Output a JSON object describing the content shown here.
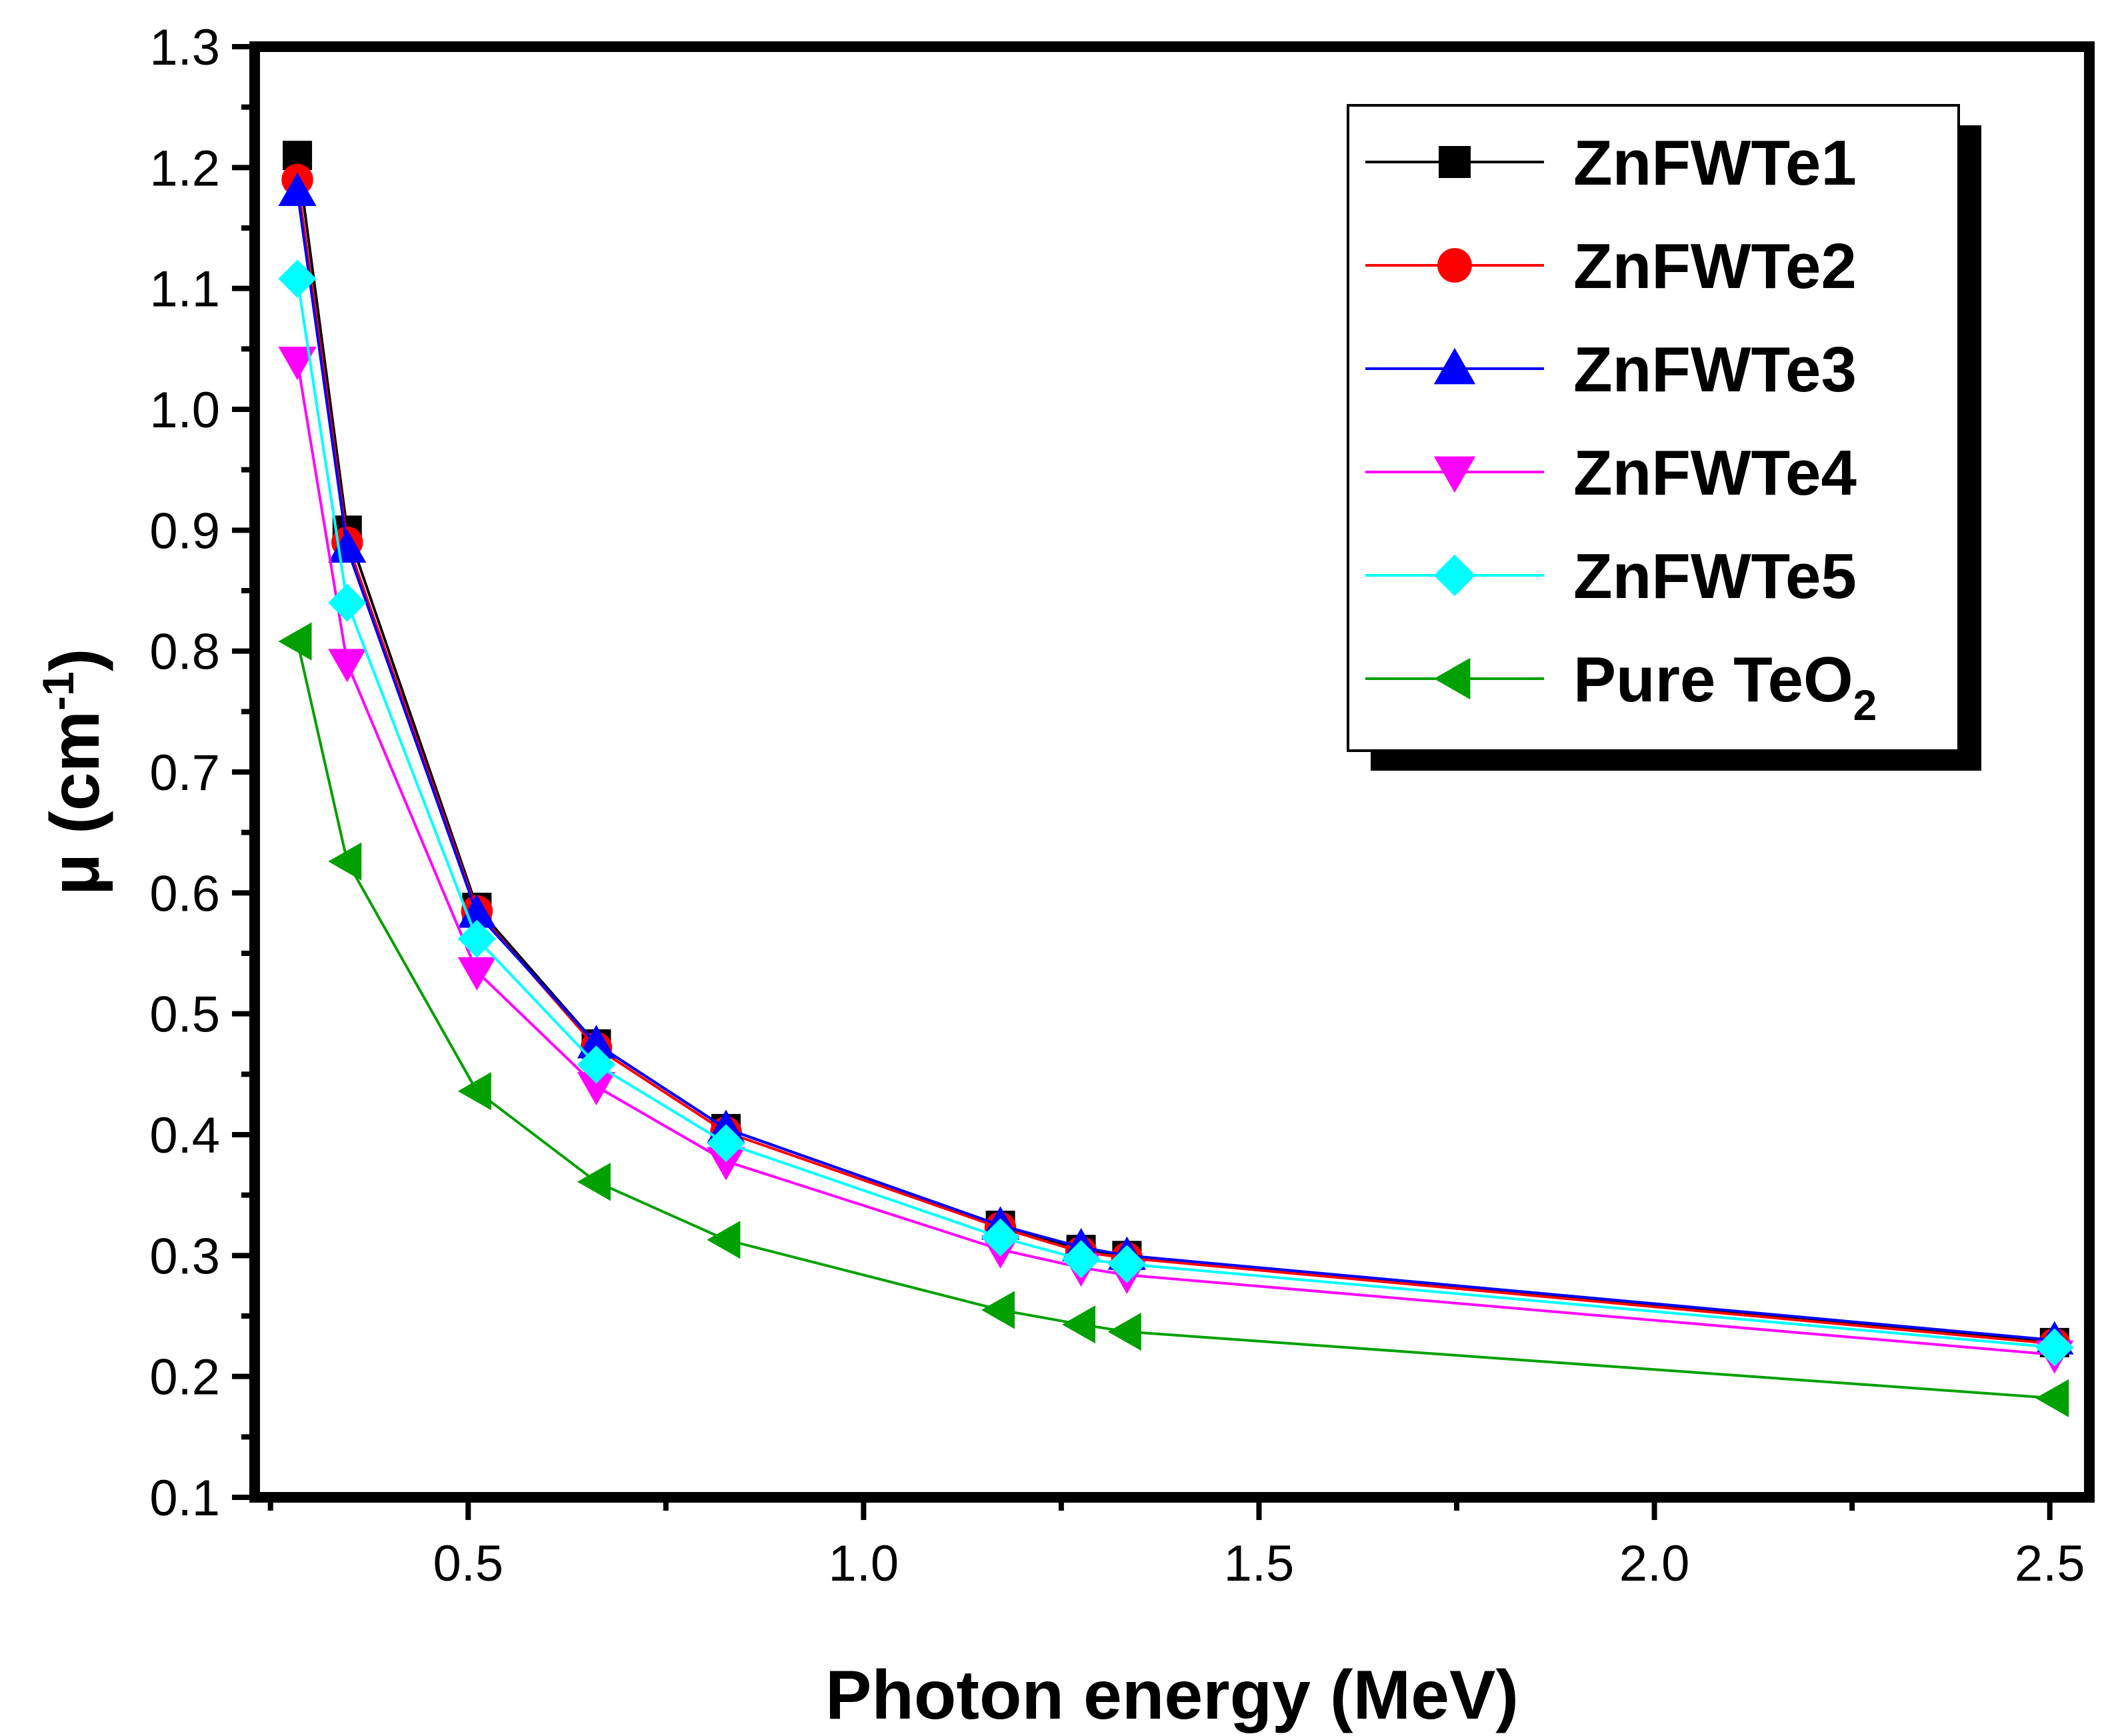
{
  "chart_data": {
    "type": "line",
    "title": "",
    "xlabel": "Photon energy (MeV)",
    "ylabel": {
      "main": "μ (cm",
      "superscript": "-1",
      "close": ")"
    },
    "xlim": [
      0.23,
      2.55
    ],
    "ylim": [
      0.1,
      1.3
    ],
    "x_ticks": [
      {
        "value": 0.5,
        "label": "0.5"
      },
      {
        "value": 1.0,
        "label": "1.0"
      },
      {
        "value": 1.5,
        "label": "1.5"
      },
      {
        "value": 2.0,
        "label": "2.0"
      },
      {
        "value": 2.5,
        "label": "2.5"
      }
    ],
    "y_ticks": [
      {
        "value": 0.1,
        "label": "0.1"
      },
      {
        "value": 0.2,
        "label": "0.2"
      },
      {
        "value": 0.3,
        "label": "0.3"
      },
      {
        "value": 0.4,
        "label": "0.4"
      },
      {
        "value": 0.5,
        "label": "0.5"
      },
      {
        "value": 0.6,
        "label": "0.6"
      },
      {
        "value": 0.7,
        "label": "0.7"
      },
      {
        "value": 0.8,
        "label": "0.8"
      },
      {
        "value": 0.9,
        "label": "0.9"
      },
      {
        "value": 1.0,
        "label": "1.0"
      },
      {
        "value": 1.1,
        "label": "1.1"
      },
      {
        "value": 1.2,
        "label": "1.2"
      },
      {
        "value": 1.3,
        "label": "1.3"
      }
    ],
    "x": [
      0.284,
      0.347,
      0.511,
      0.662,
      0.826,
      1.173,
      1.275,
      1.333,
      2.506
    ],
    "legend_position": "top-right",
    "series": [
      {
        "name": "ZnFWTe1",
        "color": "#000000",
        "marker": "square",
        "values": [
          1.21,
          0.9,
          0.588,
          0.475,
          0.405,
          0.325,
          0.305,
          0.3,
          0.228
        ]
      },
      {
        "name": "ZnFWTe2",
        "color": "#ff0000",
        "marker": "circle",
        "values": [
          1.19,
          0.89,
          0.585,
          0.472,
          0.402,
          0.323,
          0.303,
          0.298,
          0.227
        ]
      },
      {
        "name": "ZnFWTe3",
        "color": "#0000ff",
        "marker": "triangle-up",
        "values": [
          1.18,
          0.885,
          0.583,
          0.475,
          0.405,
          0.325,
          0.307,
          0.3,
          0.23
        ]
      },
      {
        "name": "ZnFWTe4",
        "color": "#ff00ff",
        "marker": "triangle-down",
        "values": [
          1.04,
          0.79,
          0.535,
          0.44,
          0.378,
          0.305,
          0.29,
          0.284,
          0.218
        ]
      },
      {
        "name": "ZnFWTe5",
        "color": "#00ffff",
        "marker": "diamond",
        "values": [
          1.108,
          0.84,
          0.562,
          0.458,
          0.393,
          0.315,
          0.297,
          0.293,
          0.224
        ]
      },
      {
        "name": "Pure TeO",
        "name_subscript": "2",
        "color": "#00a000",
        "marker": "triangle-left",
        "values": [
          0.808,
          0.626,
          0.436,
          0.361,
          0.313,
          0.255,
          0.243,
          0.237,
          0.182
        ]
      }
    ]
  }
}
